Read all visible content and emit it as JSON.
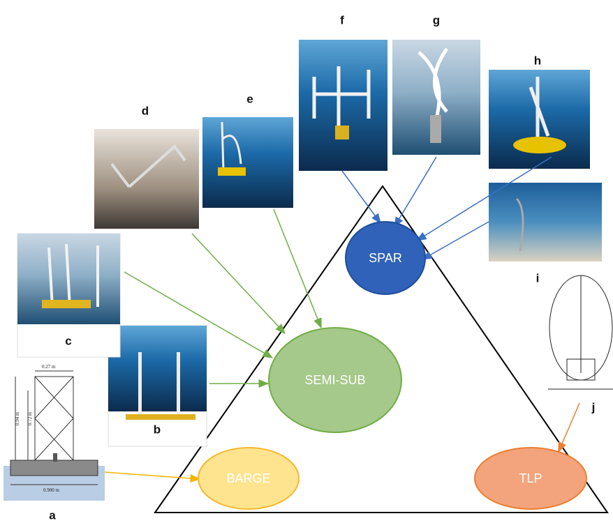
{
  "platforms": [
    {
      "label": "SPAR"
    },
    {
      "label": "SEMI-SUB"
    },
    {
      "label": "BARGE"
    },
    {
      "label": "TLP"
    }
  ],
  "images": [
    {
      "label": "a"
    },
    {
      "label": "b"
    },
    {
      "label": "c"
    },
    {
      "label": "d"
    },
    {
      "label": "e"
    },
    {
      "label": "f"
    },
    {
      "label": "g"
    },
    {
      "label": "h"
    },
    {
      "label": "i"
    },
    {
      "label": "j"
    }
  ],
  "dimensions": [
    "0.27 m",
    "0.72 m",
    "0.94 m",
    "0.900 m"
  ]
}
